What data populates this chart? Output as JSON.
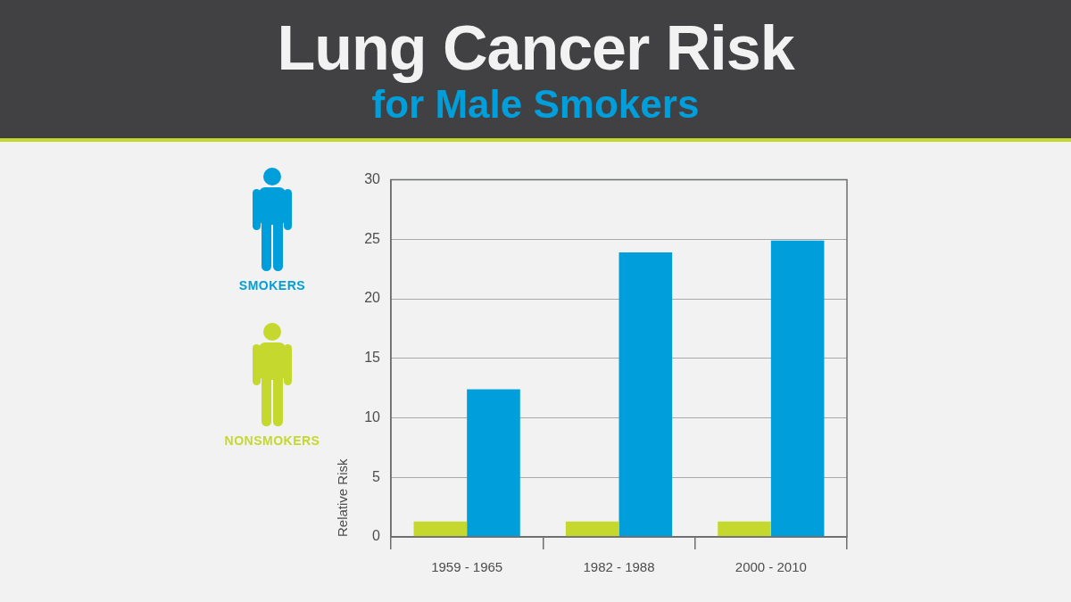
{
  "chart_data": {
    "type": "bar",
    "title": "Lung Cancer Risk",
    "subtitle": "for Male Smokers",
    "ylabel": "Relative Risk",
    "categories": [
      "1959 - 1965",
      "1982 - 1988",
      "2000 - 2010"
    ],
    "series": [
      {
        "name": "NONSMOKERS",
        "color": "#c5d82e",
        "values": [
          1.3,
          1.3,
          1.3
        ]
      },
      {
        "name": "SMOKERS",
        "color": "#009fdb",
        "values": [
          12.4,
          23.9,
          24.9
        ]
      }
    ],
    "ylim": [
      0,
      30
    ],
    "yticks": [
      0,
      5,
      10,
      15,
      20,
      25,
      30
    ],
    "grid": "y",
    "legend": "left"
  }
}
